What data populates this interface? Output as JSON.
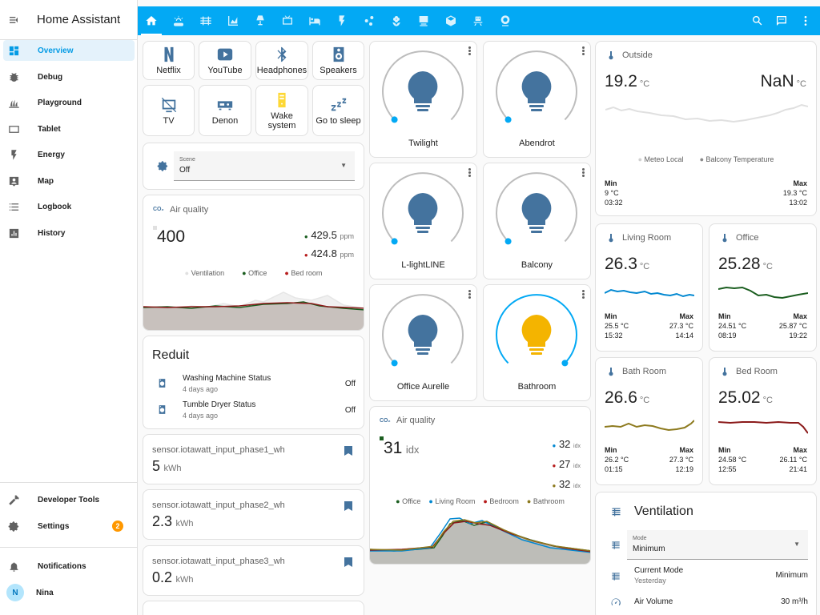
{
  "app": {
    "title": "Home Assistant"
  },
  "sidebar": {
    "items": [
      {
        "label": "Overview"
      },
      {
        "label": "Debug"
      },
      {
        "label": "Playground"
      },
      {
        "label": "Tablet"
      },
      {
        "label": "Energy"
      },
      {
        "label": "Map"
      },
      {
        "label": "Logbook"
      },
      {
        "label": "History"
      }
    ],
    "developer_tools": "Developer Tools",
    "settings": "Settings",
    "settings_badge": "2",
    "notifications": "Notifications",
    "user_name": "Nina",
    "user_initial": "N"
  },
  "toolbar": {
    "tabs": [
      "home-icon",
      "weather-icon",
      "hvac-icon",
      "chart-area-icon",
      "lamp-icon",
      "tv-icon",
      "bed-icon",
      "flash-icon",
      "graph-icon",
      "flower-icon",
      "desk-icon",
      "cube-icon",
      "robot-vacuum-icon",
      "webcam-icon"
    ],
    "accent": "#03a9f4"
  },
  "buttons": [
    {
      "label": "Netflix"
    },
    {
      "label": "YouTube"
    },
    {
      "label": "Headphones"
    },
    {
      "label": "Speakers"
    },
    {
      "label": "TV"
    },
    {
      "label": "Denon"
    },
    {
      "label": "Wake system"
    },
    {
      "label": "Go to sleep"
    }
  ],
  "scene": {
    "label": "Scene",
    "value": "Off"
  },
  "air_quality_1": {
    "title": "Air quality",
    "main_value": "400",
    "values": [
      {
        "value": "429.5",
        "unit": "ppm"
      },
      {
        "value": "424.8",
        "unit": "ppm"
      }
    ],
    "legend": [
      "Ventilation",
      "Office",
      "Bed room"
    ]
  },
  "reduit": {
    "title": "Reduit",
    "rows": [
      {
        "name": "Washing Machine Status",
        "time": "4 days ago",
        "state": "Off"
      },
      {
        "name": "Tumble Dryer Status",
        "time": "4 days ago",
        "state": "Off"
      }
    ]
  },
  "phases": [
    {
      "name": "sensor.iotawatt_input_phase1_wh",
      "value": "5",
      "unit": "kWh"
    },
    {
      "name": "sensor.iotawatt_input_phase2_wh",
      "value": "2.3",
      "unit": "kWh"
    },
    {
      "name": "sensor.iotawatt_input_phase3_wh",
      "value": "0.2",
      "unit": "kWh"
    }
  ],
  "lights": [
    {
      "name": "Twilight",
      "on": false,
      "level": 0
    },
    {
      "name": "Abendrot",
      "on": false,
      "level": 0
    },
    {
      "name": "L-lightLINE",
      "on": false,
      "level": 0
    },
    {
      "name": "Balcony",
      "on": false,
      "level": 0
    },
    {
      "name": "Office Aurelle",
      "on": false,
      "level": 0
    },
    {
      "name": "Bathroom",
      "on": true,
      "level": 1
    }
  ],
  "air_quality_2": {
    "title": "Air quality",
    "main_value": "31",
    "unit": "idx",
    "values": [
      {
        "value": "32",
        "unit": "idx"
      },
      {
        "value": "27",
        "unit": "idx"
      },
      {
        "value": "32",
        "unit": "idx"
      }
    ],
    "legend": [
      "Office",
      "Living Room",
      "Bedroom",
      "Bathroom"
    ]
  },
  "outside": {
    "name": "Outside",
    "value": "19.2",
    "unit": "°C",
    "value2": "NaN",
    "unit2": "°C",
    "legend": [
      "Meteo Local",
      "Balcony Temperature"
    ],
    "min_label": "Min",
    "min": "9 °C",
    "min_time": "03:32",
    "max_label": "Max",
    "max": "19.3 °C",
    "max_time": "13:02"
  },
  "rooms": [
    {
      "name": "Living Room",
      "value": "26.3",
      "unit": "°C",
      "min_label": "Min",
      "min": "25.5 °C",
      "min_time": "15:32",
      "max_label": "Max",
      "max": "27.3 °C",
      "max_time": "14:14"
    },
    {
      "name": "Office",
      "value": "25.28",
      "unit": "°C",
      "min_label": "Min",
      "min": "24.51 °C",
      "min_time": "08:19",
      "max_label": "Max",
      "max": "25.87 °C",
      "max_time": "19:22"
    },
    {
      "name": "Bath Room",
      "value": "26.6",
      "unit": "°C",
      "min_label": "Min",
      "min": "26.2 °C",
      "min_time": "01:15",
      "max_label": "Max",
      "max": "27.3 °C",
      "max_time": "12:19"
    },
    {
      "name": "Bed Room",
      "value": "25.02",
      "unit": "°C",
      "min_label": "Min",
      "min": "24.58 °C",
      "min_time": "12:55",
      "max_label": "Max",
      "max": "26.11 °C",
      "max_time": "21:41"
    }
  ],
  "ventilation": {
    "title": "Ventilation",
    "mode_label": "Mode",
    "mode_value": "Minimum",
    "current_mode": "Current Mode",
    "current_mode_time": "Yesterday",
    "current_mode_value": "Minimum",
    "air_volume": "Air Volume",
    "air_volume_value": "30 m³/h"
  },
  "colors": {
    "icon": "#44739e",
    "office": "#1b5e20",
    "bedroom": "#b71c1c",
    "living": "#0288d1",
    "bathroom": "#8d7a1e"
  }
}
